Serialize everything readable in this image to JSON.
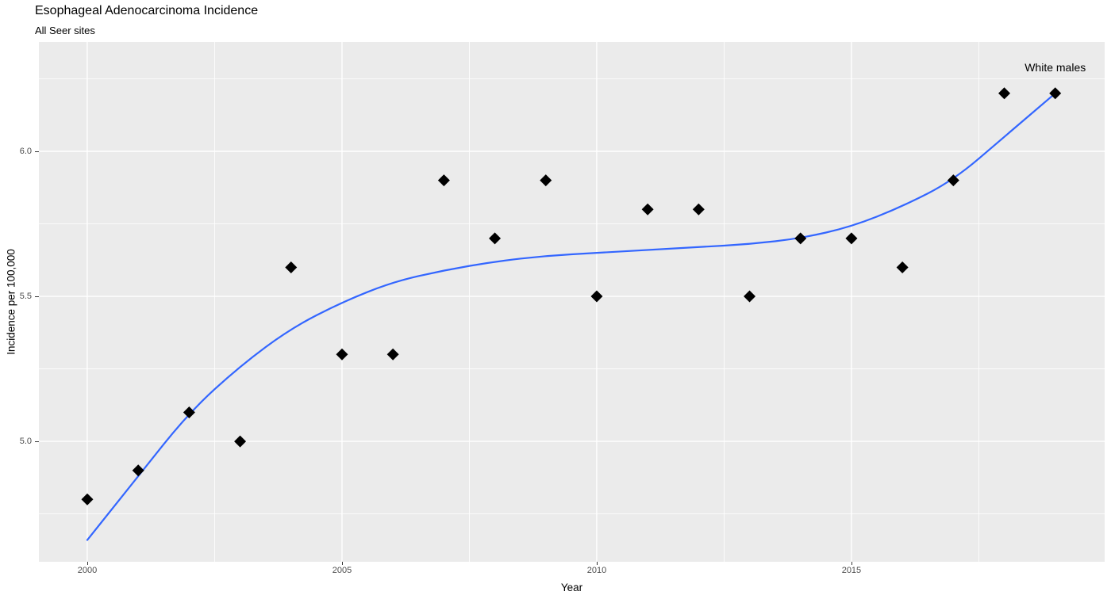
{
  "header": {
    "title": "Esophageal Adenocarcinoma Incidence",
    "subtitle": "All Seer sites"
  },
  "colors": {
    "panel_background": "#EBEBEB",
    "gridline": "#FFFFFF",
    "point": "#000000",
    "smooth_line": "#3366FF",
    "axis_tick_text": "#4D4D4D",
    "tick_mark": "#333333",
    "text": "#000000"
  },
  "chart_data": {
    "type": "scatter",
    "title": "Esophageal Adenocarcinoma Incidence",
    "subtitle": "All Seer sites",
    "xlabel": "Year",
    "ylabel": "Incidence per 100,000",
    "annotation": {
      "text": "White males",
      "x": 2019,
      "y": 6.29
    },
    "x": [
      2000,
      2001,
      2002,
      2003,
      2004,
      2005,
      2006,
      2007,
      2008,
      2009,
      2010,
      2011,
      2012,
      2013,
      2014,
      2015,
      2016,
      2017,
      2018,
      2019
    ],
    "series": [
      {
        "name": "observed-incidence",
        "style": "scatter",
        "marker": "diamond",
        "color": "#000000",
        "values": [
          4.8,
          4.9,
          5.1,
          5.0,
          5.6,
          5.3,
          5.3,
          5.9,
          5.7,
          5.9,
          5.5,
          5.8,
          5.8,
          5.5,
          5.7,
          5.7,
          5.6,
          5.9,
          6.2,
          6.2
        ]
      },
      {
        "name": "loess-smooth",
        "style": "line",
        "color": "#3366FF",
        "values": [
          4.66,
          4.88,
          5.1,
          5.26,
          5.39,
          5.48,
          5.55,
          5.59,
          5.62,
          5.64,
          5.65,
          5.66,
          5.67,
          5.68,
          5.7,
          5.74,
          5.81,
          5.9,
          6.05,
          6.2
        ]
      }
    ],
    "axes": {
      "x": {
        "domain": [
          1999.05,
          2019.97
        ],
        "major_ticks": [
          2000,
          2005,
          2010,
          2015
        ],
        "minor_ticks": [
          2002.5,
          2007.5,
          2012.5,
          2017.5
        ],
        "tick_labels": [
          "2000",
          "2005",
          "2010",
          "2015"
        ]
      },
      "y": {
        "domain": [
          4.585,
          6.377
        ],
        "major_ticks": [
          5.0,
          5.5,
          6.0
        ],
        "minor_ticks": [
          4.75,
          5.25,
          5.75,
          6.25
        ],
        "tick_labels": [
          "5.0",
          "5.5",
          "6.0"
        ]
      }
    },
    "grid": true,
    "legend": "none"
  }
}
